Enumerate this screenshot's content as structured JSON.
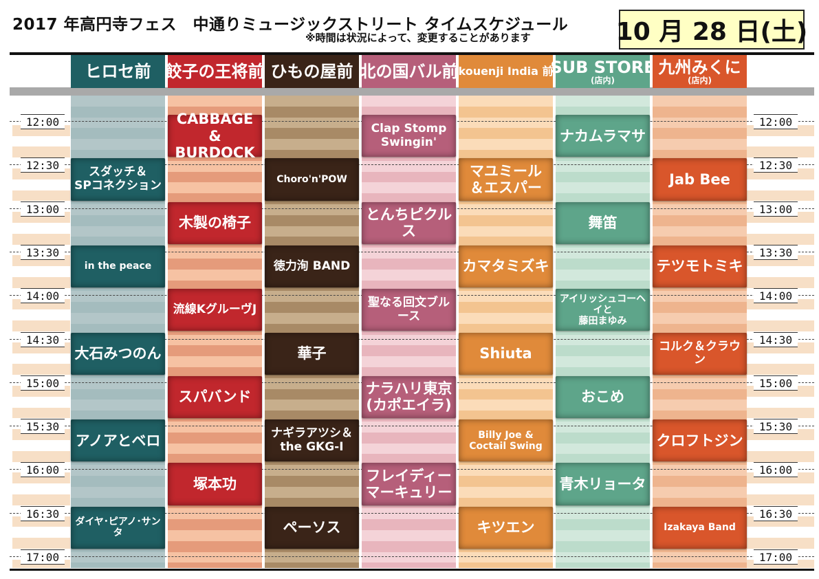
{
  "title": "2017 年高円寺フェス　中通りミュージックストリート タイムスケジュール",
  "notice": "※時間は状況によって、変更することがあります",
  "date": "10 月 28 日(土)",
  "times": [
    "12:00",
    "12:30",
    "13:00",
    "13:30",
    "14:00",
    "14:30",
    "15:00",
    "15:30",
    "16:00",
    "16:30",
    "17:00"
  ],
  "venues": [
    {
      "name": "ヒロセ前",
      "sub": "",
      "header_color": "#1f5f63",
      "light": "#b3c6c8",
      "dark": "#a4bcbe"
    },
    {
      "name": "餃子の王将前",
      "sub": "",
      "header_color": "#c1272d",
      "light": "#f6c2a3",
      "dark": "#e59b7b"
    },
    {
      "name": "ひもの屋前",
      "sub": "",
      "header_color": "#3a2418",
      "light": "#c7ae8c",
      "dark": "#a88a66"
    },
    {
      "name": "北の国バル前",
      "sub": "",
      "header_color": "#b65f7a",
      "light": "#f4d3d8",
      "dark": "#e8b5bd"
    },
    {
      "name": "kouenji India 前",
      "sub": "",
      "header_color": "#e08a3a",
      "light": "#fbdcb9",
      "dark": "#f3c490"
    },
    {
      "name": "SUB STORE",
      "sub": "(店内)",
      "header_color": "#5ea58a",
      "light": "#d2e8dc",
      "dark": "#bcdccb"
    },
    {
      "name": "九州みくに",
      "sub": "(店内)",
      "header_color": "#d9562b",
      "light": "#f6ccaf",
      "dark": "#eeb48e"
    }
  ],
  "performances": [
    {
      "venue": 0,
      "slot": 1,
      "label": "スダッチ＆\nSPコネクション"
    },
    {
      "venue": 0,
      "slot": 3,
      "label": "in the peace"
    },
    {
      "venue": 0,
      "slot": 5,
      "label": "大石みつのん"
    },
    {
      "venue": 0,
      "slot": 7,
      "label": "アノアとベロ"
    },
    {
      "venue": 0,
      "slot": 9,
      "label": "ダイヤ･ピアノ･サンタ"
    },
    {
      "venue": 1,
      "slot": 0,
      "label": "CABBAGE\n&\nBURDOCK"
    },
    {
      "venue": 1,
      "slot": 2,
      "label": "木製の椅子"
    },
    {
      "venue": 1,
      "slot": 4,
      "label": "流線KグルーヴJ"
    },
    {
      "venue": 1,
      "slot": 6,
      "label": "スパバンド"
    },
    {
      "venue": 1,
      "slot": 8,
      "label": "塚本功"
    },
    {
      "venue": 2,
      "slot": 1,
      "label": "Choro'n'POW"
    },
    {
      "venue": 2,
      "slot": 3,
      "label": "徳力洵 BAND"
    },
    {
      "venue": 2,
      "slot": 5,
      "label": "華子"
    },
    {
      "venue": 2,
      "slot": 7,
      "label": "ナギラアツシ＆\nthe GKG-I"
    },
    {
      "venue": 2,
      "slot": 9,
      "label": "ペーソス"
    },
    {
      "venue": 3,
      "slot": 0,
      "label": "Clap Stomp\nSwingin'"
    },
    {
      "venue": 3,
      "slot": 2,
      "label": "とんちピクルス"
    },
    {
      "venue": 3,
      "slot": 4,
      "label": "聖なる回文ブルース"
    },
    {
      "venue": 3,
      "slot": 6,
      "label": "ナラハリ東京\n(カポエイラ)"
    },
    {
      "venue": 3,
      "slot": 8,
      "label": "フレイディー\nマーキュリー"
    },
    {
      "venue": 4,
      "slot": 1,
      "label": "マユミール\n＆エスパー"
    },
    {
      "venue": 4,
      "slot": 3,
      "label": "カマタミズキ"
    },
    {
      "venue": 4,
      "slot": 5,
      "label": "Shiuta"
    },
    {
      "venue": 4,
      "slot": 7,
      "label": "Billy Joe &\nCoctail Swing"
    },
    {
      "venue": 4,
      "slot": 9,
      "label": "キツエン"
    },
    {
      "venue": 5,
      "slot": 0,
      "label": "ナカムラマサ"
    },
    {
      "venue": 5,
      "slot": 2,
      "label": "舞笛"
    },
    {
      "venue": 5,
      "slot": 4,
      "label": "アイリッシュコーヘイと\n藤田まゆみ"
    },
    {
      "venue": 5,
      "slot": 6,
      "label": "おこめ"
    },
    {
      "venue": 5,
      "slot": 8,
      "label": "青木リョータ"
    },
    {
      "venue": 6,
      "slot": 1,
      "label": "Jab Bee"
    },
    {
      "venue": 6,
      "slot": 3,
      "label": "テツモトミキ"
    },
    {
      "venue": 6,
      "slot": 5,
      "label": "コルク＆クラウン"
    },
    {
      "venue": 6,
      "slot": 7,
      "label": "クロフトジン"
    },
    {
      "venue": 6,
      "slot": 9,
      "label": "Izakaya Band"
    }
  ]
}
